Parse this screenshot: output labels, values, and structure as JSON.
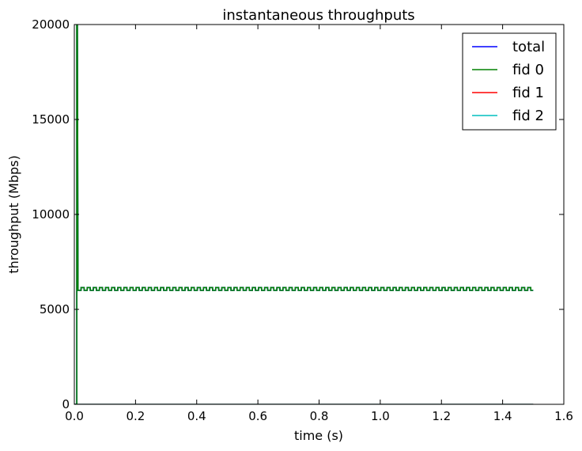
{
  "chart_data": {
    "type": "line",
    "title": "instantaneous throughputs",
    "xlabel": "time (s)",
    "ylabel": "throughput (Mbps)",
    "xlim": [
      0.0,
      1.6
    ],
    "ylim": [
      0,
      20000
    ],
    "x_ticks": [
      "0.0",
      "0.2",
      "0.4",
      "0.6",
      "0.8",
      "1.0",
      "1.2",
      "1.4",
      "1.6"
    ],
    "y_ticks": [
      "0",
      "5000",
      "10000",
      "15000",
      "20000"
    ],
    "x_tick_values": [
      0.0,
      0.2,
      0.4,
      0.6,
      0.8,
      1.0,
      1.2,
      1.4,
      1.6
    ],
    "y_tick_values": [
      0,
      5000,
      10000,
      15000,
      20000
    ],
    "grid": false,
    "legend_position": "top-right",
    "series": [
      {
        "name": "total",
        "color": "#0000ff",
        "pattern": {
          "start": 0.0,
          "end": 1.5,
          "spike_at": 0.01,
          "spike_value": 20000,
          "steady_start": 0.012,
          "period": 0.02,
          "low": 6000,
          "high": 6150
        }
      },
      {
        "name": "fid 0",
        "color": "#008000",
        "pattern": {
          "start": 0.0,
          "end": 1.5,
          "spike_at": 0.01,
          "spike_value": 20000,
          "steady_start": 0.012,
          "period": 0.02,
          "low": 6000,
          "high": 6150
        }
      },
      {
        "name": "fid 1",
        "color": "#ff0000",
        "flat": {
          "start": 0.0,
          "end": 1.5,
          "value": 0
        }
      },
      {
        "name": "fid 2",
        "color": "#00bfbf",
        "flat": {
          "start": 0.0,
          "end": 1.5,
          "value": 0
        }
      }
    ]
  }
}
